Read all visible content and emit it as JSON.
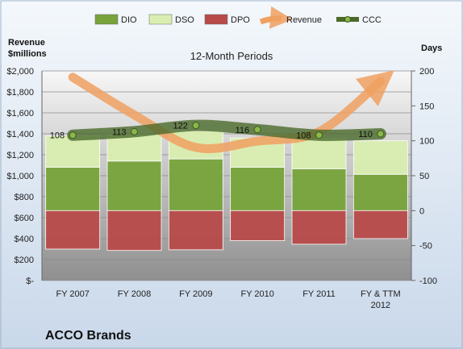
{
  "chart_data": {
    "type": "bar",
    "title": "12-Month Periods",
    "company": "ACCO Brands",
    "categories": [
      "FY 2007",
      "FY 2008",
      "FY 2009",
      "FY 2010",
      "FY 2011",
      "FY & TTM 2012"
    ],
    "left_axis": {
      "label_line1": "Revenue",
      "label_line2": "$millions",
      "ylim": [
        0,
        2000
      ],
      "ticks": [
        {
          "v": 0,
          "label": "$-"
        },
        {
          "v": 200,
          "label": "$200"
        },
        {
          "v": 400,
          "label": "$400"
        },
        {
          "v": 600,
          "label": "$600"
        },
        {
          "v": 800,
          "label": "$800"
        },
        {
          "v": 1000,
          "label": "$1,000"
        },
        {
          "v": 1200,
          "label": "$1,200"
        },
        {
          "v": 1400,
          "label": "$1,400"
        },
        {
          "v": 1600,
          "label": "$1,600"
        },
        {
          "v": 1800,
          "label": "$1,800"
        },
        {
          "v": 2000,
          "label": "$2,000"
        }
      ]
    },
    "right_axis": {
      "label": "Days",
      "ylim": [
        -100,
        200
      ],
      "ticks": [
        {
          "v": -100,
          "label": "-100"
        },
        {
          "v": -50,
          "label": "-50"
        },
        {
          "v": 0,
          "label": "0"
        },
        {
          "v": 50,
          "label": "50"
        },
        {
          "v": 100,
          "label": "100"
        },
        {
          "v": 150,
          "label": "150"
        },
        {
          "v": 200,
          "label": "200"
        }
      ]
    },
    "series": [
      {
        "name": "DIO",
        "kind": "bar",
        "color": "#77a33a",
        "bottom": [
          0,
          0,
          0,
          0,
          0,
          0
        ],
        "top": [
          62,
          71,
          74,
          62,
          60,
          52
        ]
      },
      {
        "name": "DSO",
        "kind": "bar",
        "color": "#d9eeb0",
        "bottom": [
          62,
          71,
          74,
          62,
          60,
          52
        ],
        "top": [
          107,
          109,
          114,
          104,
          103,
          100
        ]
      },
      {
        "name": "DPO",
        "kind": "bar",
        "color": "#b84a4a",
        "bottom": [
          -55,
          -57,
          -56,
          -43,
          -48,
          -40
        ],
        "top": [
          0,
          0,
          0,
          0,
          0,
          0
        ]
      },
      {
        "name": "Revenue",
        "kind": "line",
        "axis": "left",
        "color": "#f0a060",
        "values": [
          1940,
          1580,
          1270,
          1330,
          1420,
          1900
        ]
      },
      {
        "name": "CCC",
        "kind": "line",
        "axis": "right",
        "color": "#4a6a2a",
        "values": [
          108,
          113,
          122,
          116,
          108,
          110
        ],
        "labels": [
          "108",
          "113",
          "122",
          "116",
          "108",
          "110"
        ]
      }
    ],
    "legend_position": "top"
  }
}
